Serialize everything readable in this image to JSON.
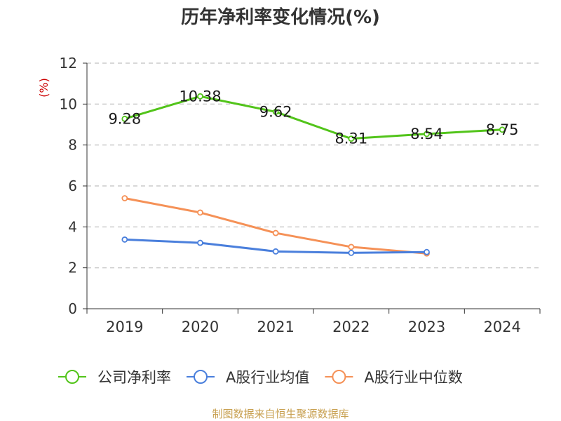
{
  "chart_data": {
    "type": "line",
    "title": "历年净利率变化情况(%)",
    "ylabel": "(%)",
    "xlabel": "",
    "categories": [
      "2019",
      "2020",
      "2021",
      "2022",
      "2023",
      "2024"
    ],
    "ylim": [
      0,
      12
    ],
    "yticks": [
      0,
      2,
      4,
      6,
      8,
      10,
      12
    ],
    "grid": true,
    "legend_position": "bottom",
    "series": [
      {
        "name": "公司净利率",
        "color": "#52c41a",
        "values": [
          9.28,
          10.38,
          9.62,
          8.31,
          8.54,
          8.75
        ],
        "data_labels": [
          "9.28",
          "10.38",
          "9.62",
          "8.31",
          "8.54",
          "8.75"
        ]
      },
      {
        "name": "A股行业均值",
        "color": "#4a7fdc",
        "values": [
          3.38,
          3.22,
          2.8,
          2.73,
          2.77,
          null
        ]
      },
      {
        "name": "A股行业中位数",
        "color": "#f59157",
        "values": [
          5.4,
          4.7,
          3.7,
          3.02,
          2.7,
          null
        ]
      }
    ]
  },
  "colors": {
    "unit_label": "#cc0000",
    "source_text": "#c8a050",
    "grid": "#cccccc",
    "axis": "#333333"
  },
  "source": "制图数据来自恒生聚源数据库"
}
